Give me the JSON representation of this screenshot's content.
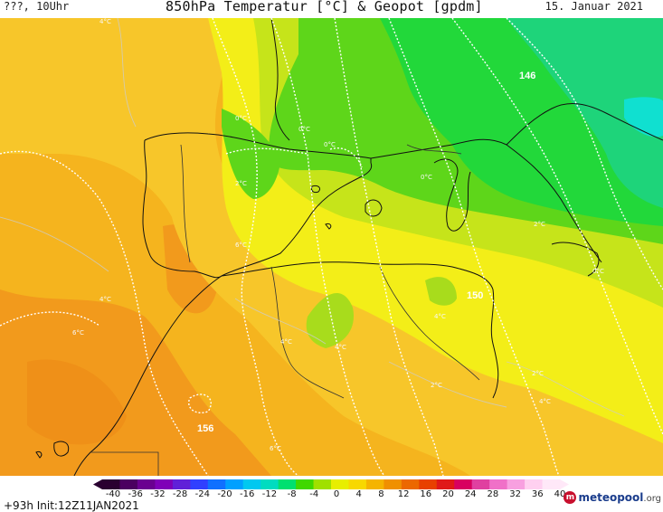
{
  "header": {
    "time_label": "???, 10Uhr",
    "title": "850hPa Temperatur [°C] & Geopot [gpdm]",
    "date": "15. Januar 2021"
  },
  "footer": {
    "run_label": "+93h  Init:12Z11JAN2021",
    "logo_name": "meteopool",
    "logo_tld": ".org"
  },
  "colorbar": {
    "ticks": [
      "-40",
      "-36",
      "-32",
      "-28",
      "-24",
      "-20",
      "-16",
      "-12",
      "-8",
      "-4",
      "0",
      "4",
      "8",
      "12",
      "16",
      "20",
      "24",
      "28",
      "32",
      "36",
      "40"
    ],
    "colors": [
      "#2a0030",
      "#4b0060",
      "#6a0090",
      "#7f00b8",
      "#6020d8",
      "#3040ff",
      "#1070ff",
      "#00a0ff",
      "#00c8f0",
      "#00dcc0",
      "#00e070",
      "#40d800",
      "#a0e000",
      "#e8ee00",
      "#f8d800",
      "#f5b400",
      "#f09000",
      "#ec6800",
      "#e84000",
      "#e01818",
      "#d80060",
      "#e040a0",
      "#f070c8",
      "#f8a0e0",
      "#ffd0f0",
      "#ffe8f8"
    ]
  },
  "map_labels": {
    "geopot": [
      "146",
      "150",
      "156"
    ],
    "isotherms": [
      "4°C",
      "0°C",
      "0°C",
      "0°C",
      "0°C",
      "2°C",
      "2°C",
      "0°C",
      "2°C",
      "4°C",
      "4°C",
      "4°C",
      "6°C",
      "6°C",
      "4°C",
      "2°C",
      "4°C",
      "6°C"
    ]
  },
  "colors": {
    "deep_orange": "#f29a1c",
    "orange": "#f5b41e",
    "light_orange": "#f7c62a",
    "yellow": "#f3ee18",
    "yellow_green": "#c6e41a",
    "green": "#5ed61a",
    "bright_green": "#22d83a",
    "teal": "#1ed47a",
    "cyan": "#10e0d0"
  }
}
